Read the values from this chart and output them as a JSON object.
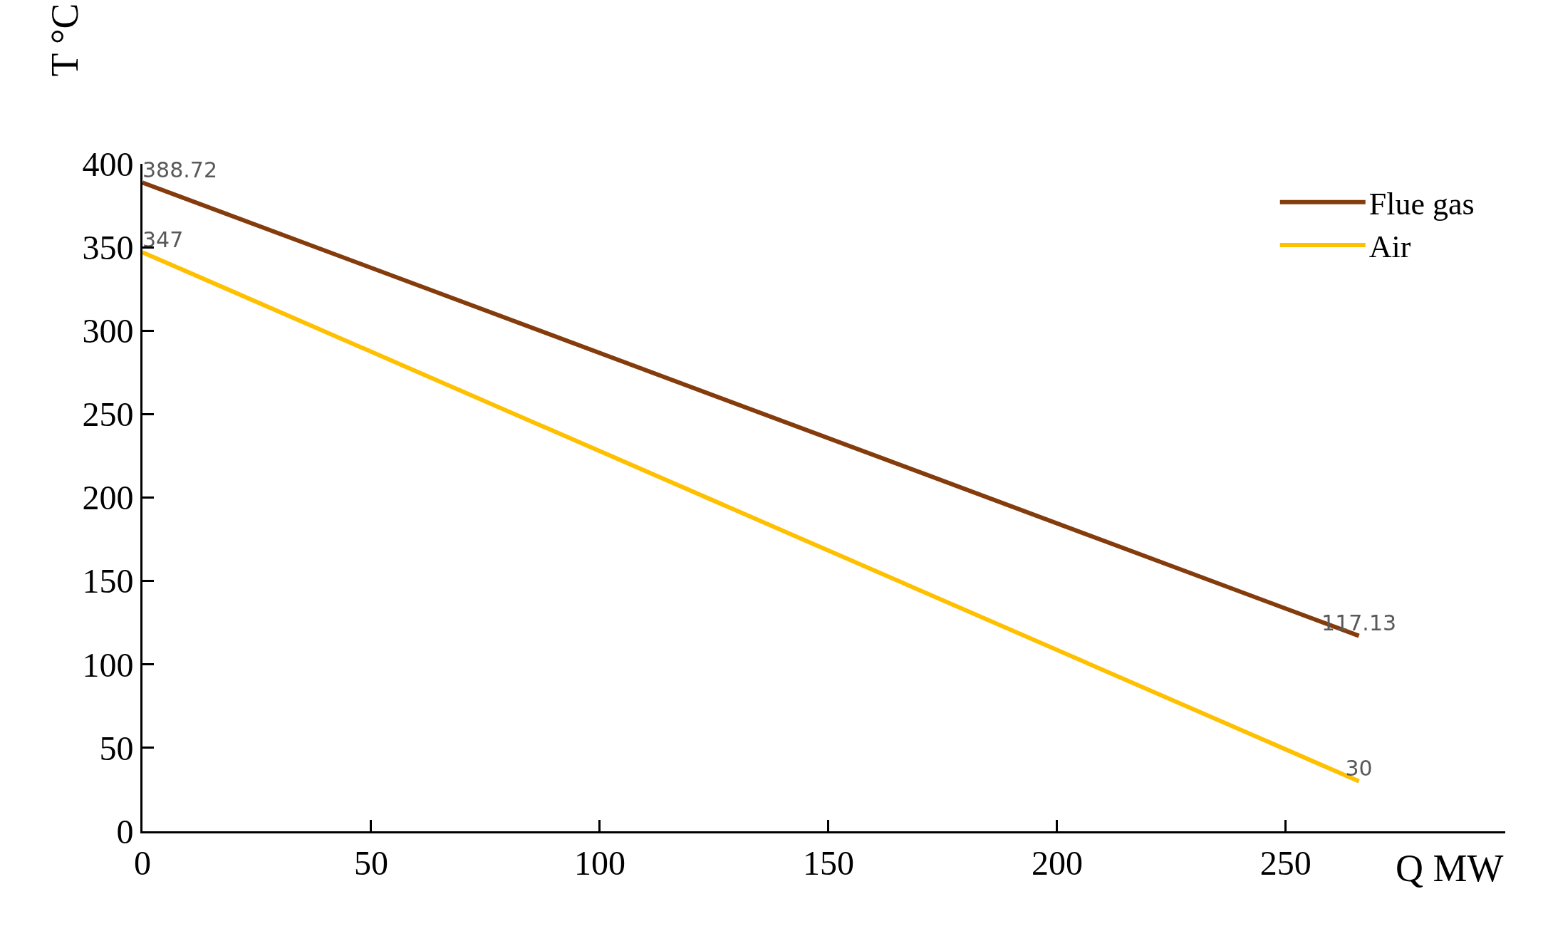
{
  "chart_data": {
    "type": "line",
    "xlabel": "Q MW",
    "ylabel": "T °C",
    "xlim": [
      0,
      298
    ],
    "xticks": [
      0,
      50,
      100,
      150,
      200,
      250
    ],
    "ylim": [
      0,
      400
    ],
    "yticks": [
      0,
      50,
      100,
      150,
      200,
      250,
      300,
      350,
      400
    ],
    "series": [
      {
        "name": "Flue gas",
        "color": "#843c0c",
        "values": [
          388.72,
          117.13
        ]
      },
      {
        "name": "Air",
        "color": "#ffc000",
        "values": [
          347,
          30
        ]
      }
    ],
    "x": [
      0,
      266
    ],
    "data_labels": true,
    "legend": "top right",
    "marker": "none",
    "line_style": "solid"
  }
}
